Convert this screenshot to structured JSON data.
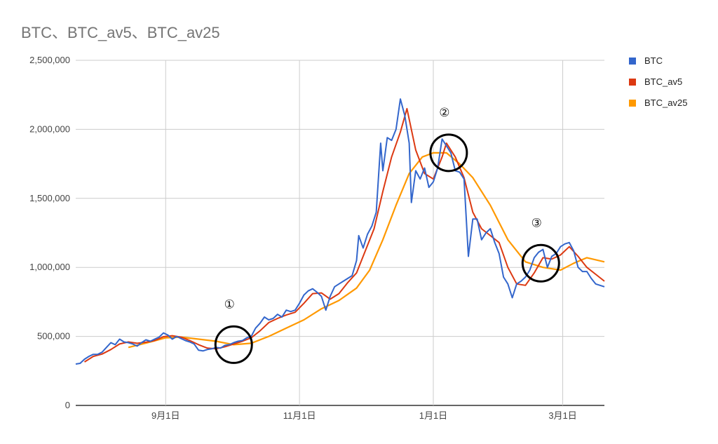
{
  "chart_data": {
    "type": "line",
    "title": "BTC、BTC_av5、BTC_av25",
    "xlabel": "",
    "ylabel": "",
    "ylim": [
      0,
      2500000
    ],
    "y_ticks": [
      0,
      500000,
      1000000,
      1500000,
      2000000,
      2500000
    ],
    "y_tick_labels": [
      "0",
      "500,000",
      "1,000,000",
      "1,500,000",
      "2,000,000",
      "2,500,000"
    ],
    "x_range": [
      "2017-07-22",
      "2018-03-20"
    ],
    "x_ticks": [
      {
        "date": "2017-09-01",
        "label": "9月1日"
      },
      {
        "date": "2017-11-01",
        "label": "11月1日"
      },
      {
        "date": "2018-01-01",
        "label": "1月1日"
      },
      {
        "date": "2018-03-01",
        "label": "3月1日"
      }
    ],
    "grid": true,
    "legend_position": "right",
    "series": [
      {
        "name": "BTC",
        "color": "#3366cc",
        "points": [
          [
            "2017-07-22",
            300000
          ],
          [
            "2017-07-24",
            305000
          ],
          [
            "2017-07-26",
            335000
          ],
          [
            "2017-07-28",
            355000
          ],
          [
            "2017-07-30",
            370000
          ],
          [
            "2017-08-01",
            370000
          ],
          [
            "2017-08-03",
            385000
          ],
          [
            "2017-08-05",
            420000
          ],
          [
            "2017-08-07",
            455000
          ],
          [
            "2017-08-09",
            440000
          ],
          [
            "2017-08-11",
            480000
          ],
          [
            "2017-08-13",
            460000
          ],
          [
            "2017-08-15",
            455000
          ],
          [
            "2017-08-17",
            445000
          ],
          [
            "2017-08-19",
            430000
          ],
          [
            "2017-08-21",
            455000
          ],
          [
            "2017-08-23",
            475000
          ],
          [
            "2017-08-25",
            465000
          ],
          [
            "2017-08-27",
            480000
          ],
          [
            "2017-08-29",
            495000
          ],
          [
            "2017-08-31",
            525000
          ],
          [
            "2017-09-02",
            510000
          ],
          [
            "2017-09-04",
            480000
          ],
          [
            "2017-09-06",
            500000
          ],
          [
            "2017-09-08",
            485000
          ],
          [
            "2017-09-10",
            470000
          ],
          [
            "2017-09-12",
            460000
          ],
          [
            "2017-09-14",
            445000
          ],
          [
            "2017-09-16",
            400000
          ],
          [
            "2017-09-18",
            395000
          ],
          [
            "2017-09-20",
            405000
          ],
          [
            "2017-09-22",
            410000
          ],
          [
            "2017-09-24",
            420000
          ],
          [
            "2017-09-26",
            415000
          ],
          [
            "2017-09-28",
            435000
          ],
          [
            "2017-09-30",
            440000
          ],
          [
            "2017-10-02",
            455000
          ],
          [
            "2017-10-04",
            465000
          ],
          [
            "2017-10-06",
            470000
          ],
          [
            "2017-10-08",
            490000
          ],
          [
            "2017-10-10",
            500000
          ],
          [
            "2017-10-12",
            560000
          ],
          [
            "2017-10-14",
            595000
          ],
          [
            "2017-10-16",
            640000
          ],
          [
            "2017-10-18",
            620000
          ],
          [
            "2017-10-20",
            630000
          ],
          [
            "2017-10-22",
            660000
          ],
          [
            "2017-10-24",
            640000
          ],
          [
            "2017-10-26",
            690000
          ],
          [
            "2017-10-28",
            680000
          ],
          [
            "2017-10-30",
            690000
          ],
          [
            "2017-11-01",
            740000
          ],
          [
            "2017-11-03",
            800000
          ],
          [
            "2017-11-05",
            830000
          ],
          [
            "2017-11-07",
            845000
          ],
          [
            "2017-11-09",
            820000
          ],
          [
            "2017-11-11",
            790000
          ],
          [
            "2017-11-13",
            690000
          ],
          [
            "2017-11-15",
            790000
          ],
          [
            "2017-11-17",
            860000
          ],
          [
            "2017-11-19",
            880000
          ],
          [
            "2017-11-21",
            900000
          ],
          [
            "2017-11-23",
            920000
          ],
          [
            "2017-11-25",
            940000
          ],
          [
            "2017-11-27",
            1050000
          ],
          [
            "2017-11-28",
            1230000
          ],
          [
            "2017-11-30",
            1140000
          ],
          [
            "2017-12-02",
            1240000
          ],
          [
            "2017-12-04",
            1300000
          ],
          [
            "2017-12-06",
            1400000
          ],
          [
            "2017-12-08",
            1900000
          ],
          [
            "2017-12-09",
            1700000
          ],
          [
            "2017-12-11",
            1940000
          ],
          [
            "2017-12-13",
            1920000
          ],
          [
            "2017-12-15",
            2000000
          ],
          [
            "2017-12-17",
            2220000
          ],
          [
            "2017-12-19",
            2100000
          ],
          [
            "2017-12-21",
            1900000
          ],
          [
            "2017-12-22",
            1470000
          ],
          [
            "2017-12-24",
            1700000
          ],
          [
            "2017-12-26",
            1640000
          ],
          [
            "2017-12-28",
            1720000
          ],
          [
            "2017-12-30",
            1580000
          ],
          [
            "2018-01-01",
            1620000
          ],
          [
            "2018-01-03",
            1720000
          ],
          [
            "2018-01-05",
            1930000
          ],
          [
            "2018-01-07",
            1880000
          ],
          [
            "2018-01-09",
            1830000
          ],
          [
            "2018-01-11",
            1700000
          ],
          [
            "2018-01-13",
            1690000
          ],
          [
            "2018-01-15",
            1640000
          ],
          [
            "2018-01-17",
            1080000
          ],
          [
            "2018-01-19",
            1350000
          ],
          [
            "2018-01-21",
            1350000
          ],
          [
            "2018-01-23",
            1200000
          ],
          [
            "2018-01-25",
            1250000
          ],
          [
            "2018-01-27",
            1280000
          ],
          [
            "2018-01-29",
            1180000
          ],
          [
            "2018-01-31",
            1100000
          ],
          [
            "2018-02-02",
            930000
          ],
          [
            "2018-02-04",
            880000
          ],
          [
            "2018-02-06",
            780000
          ],
          [
            "2018-02-08",
            880000
          ],
          [
            "2018-02-10",
            900000
          ],
          [
            "2018-02-12",
            930000
          ],
          [
            "2018-02-14",
            980000
          ],
          [
            "2018-02-16",
            1070000
          ],
          [
            "2018-02-18",
            1110000
          ],
          [
            "2018-02-20",
            1130000
          ],
          [
            "2018-02-22",
            1000000
          ],
          [
            "2018-02-24",
            1080000
          ],
          [
            "2018-02-26",
            1100000
          ],
          [
            "2018-02-28",
            1150000
          ],
          [
            "2018-03-02",
            1170000
          ],
          [
            "2018-03-04",
            1180000
          ],
          [
            "2018-03-06",
            1120000
          ],
          [
            "2018-03-08",
            1000000
          ],
          [
            "2018-03-10",
            970000
          ],
          [
            "2018-03-12",
            970000
          ],
          [
            "2018-03-14",
            920000
          ],
          [
            "2018-03-16",
            880000
          ],
          [
            "2018-03-18",
            870000
          ],
          [
            "2018-03-20",
            860000
          ]
        ]
      },
      {
        "name": "BTC_av5",
        "color": "#dc3912",
        "points": [
          [
            "2017-07-26",
            315000
          ],
          [
            "2017-07-30",
            355000
          ],
          [
            "2017-08-03",
            372000
          ],
          [
            "2017-08-07",
            405000
          ],
          [
            "2017-08-11",
            445000
          ],
          [
            "2017-08-15",
            460000
          ],
          [
            "2017-08-19",
            450000
          ],
          [
            "2017-08-23",
            458000
          ],
          [
            "2017-08-27",
            470000
          ],
          [
            "2017-08-31",
            498000
          ],
          [
            "2017-09-04",
            505000
          ],
          [
            "2017-09-08",
            495000
          ],
          [
            "2017-09-12",
            470000
          ],
          [
            "2017-09-16",
            440000
          ],
          [
            "2017-09-20",
            415000
          ],
          [
            "2017-09-24",
            410000
          ],
          [
            "2017-09-28",
            425000
          ],
          [
            "2017-10-02",
            445000
          ],
          [
            "2017-10-06",
            465000
          ],
          [
            "2017-10-10",
            490000
          ],
          [
            "2017-10-14",
            540000
          ],
          [
            "2017-10-18",
            600000
          ],
          [
            "2017-10-22",
            630000
          ],
          [
            "2017-10-26",
            655000
          ],
          [
            "2017-10-30",
            675000
          ],
          [
            "2017-11-03",
            740000
          ],
          [
            "2017-11-07",
            810000
          ],
          [
            "2017-11-11",
            815000
          ],
          [
            "2017-11-15",
            770000
          ],
          [
            "2017-11-19",
            810000
          ],
          [
            "2017-11-23",
            890000
          ],
          [
            "2017-11-27",
            960000
          ],
          [
            "2017-12-01",
            1120000
          ],
          [
            "2017-12-05",
            1280000
          ],
          [
            "2017-12-09",
            1550000
          ],
          [
            "2017-12-13",
            1800000
          ],
          [
            "2017-12-17",
            1980000
          ],
          [
            "2017-12-20",
            2150000
          ],
          [
            "2017-12-24",
            1850000
          ],
          [
            "2017-12-28",
            1680000
          ],
          [
            "2018-01-01",
            1640000
          ],
          [
            "2018-01-05",
            1800000
          ],
          [
            "2018-01-07",
            1900000
          ],
          [
            "2018-01-11",
            1800000
          ],
          [
            "2018-01-15",
            1650000
          ],
          [
            "2018-01-19",
            1400000
          ],
          [
            "2018-01-23",
            1280000
          ],
          [
            "2018-01-27",
            1230000
          ],
          [
            "2018-01-31",
            1180000
          ],
          [
            "2018-02-04",
            1000000
          ],
          [
            "2018-02-08",
            880000
          ],
          [
            "2018-02-12",
            870000
          ],
          [
            "2018-02-16",
            960000
          ],
          [
            "2018-02-20",
            1070000
          ],
          [
            "2018-02-24",
            1060000
          ],
          [
            "2018-02-28",
            1090000
          ],
          [
            "2018-03-04",
            1150000
          ],
          [
            "2018-03-08",
            1080000
          ],
          [
            "2018-03-12",
            1000000
          ],
          [
            "2018-03-16",
            950000
          ],
          [
            "2018-03-20",
            900000
          ]
        ]
      },
      {
        "name": "BTC_av25",
        "color": "#ff9900",
        "points": [
          [
            "2017-08-15",
            420000
          ],
          [
            "2017-08-25",
            460000
          ],
          [
            "2017-09-01",
            490000
          ],
          [
            "2017-09-08",
            495000
          ],
          [
            "2017-09-16",
            480000
          ],
          [
            "2017-09-24",
            465000
          ],
          [
            "2017-10-02",
            440000
          ],
          [
            "2017-10-10",
            450000
          ],
          [
            "2017-10-18",
            500000
          ],
          [
            "2017-10-26",
            560000
          ],
          [
            "2017-11-03",
            620000
          ],
          [
            "2017-11-11",
            700000
          ],
          [
            "2017-11-19",
            760000
          ],
          [
            "2017-11-27",
            850000
          ],
          [
            "2017-12-03",
            980000
          ],
          [
            "2017-12-09",
            1200000
          ],
          [
            "2017-12-15",
            1450000
          ],
          [
            "2017-12-21",
            1680000
          ],
          [
            "2017-12-27",
            1800000
          ],
          [
            "2018-01-01",
            1830000
          ],
          [
            "2018-01-07",
            1830000
          ],
          [
            "2018-01-13",
            1750000
          ],
          [
            "2018-01-19",
            1650000
          ],
          [
            "2018-01-27",
            1450000
          ],
          [
            "2018-02-04",
            1200000
          ],
          [
            "2018-02-12",
            1040000
          ],
          [
            "2018-02-20",
            1000000
          ],
          [
            "2018-02-28",
            980000
          ],
          [
            "2018-03-06",
            1030000
          ],
          [
            "2018-03-12",
            1070000
          ],
          [
            "2018-03-20",
            1040000
          ]
        ]
      }
    ],
    "annotations": [
      {
        "label": "①",
        "date": "2017-10-02",
        "value": 440000
      },
      {
        "label": "②",
        "date": "2018-01-08",
        "value": 1830000
      },
      {
        "label": "③",
        "date": "2018-02-19",
        "value": 1030000
      }
    ]
  }
}
